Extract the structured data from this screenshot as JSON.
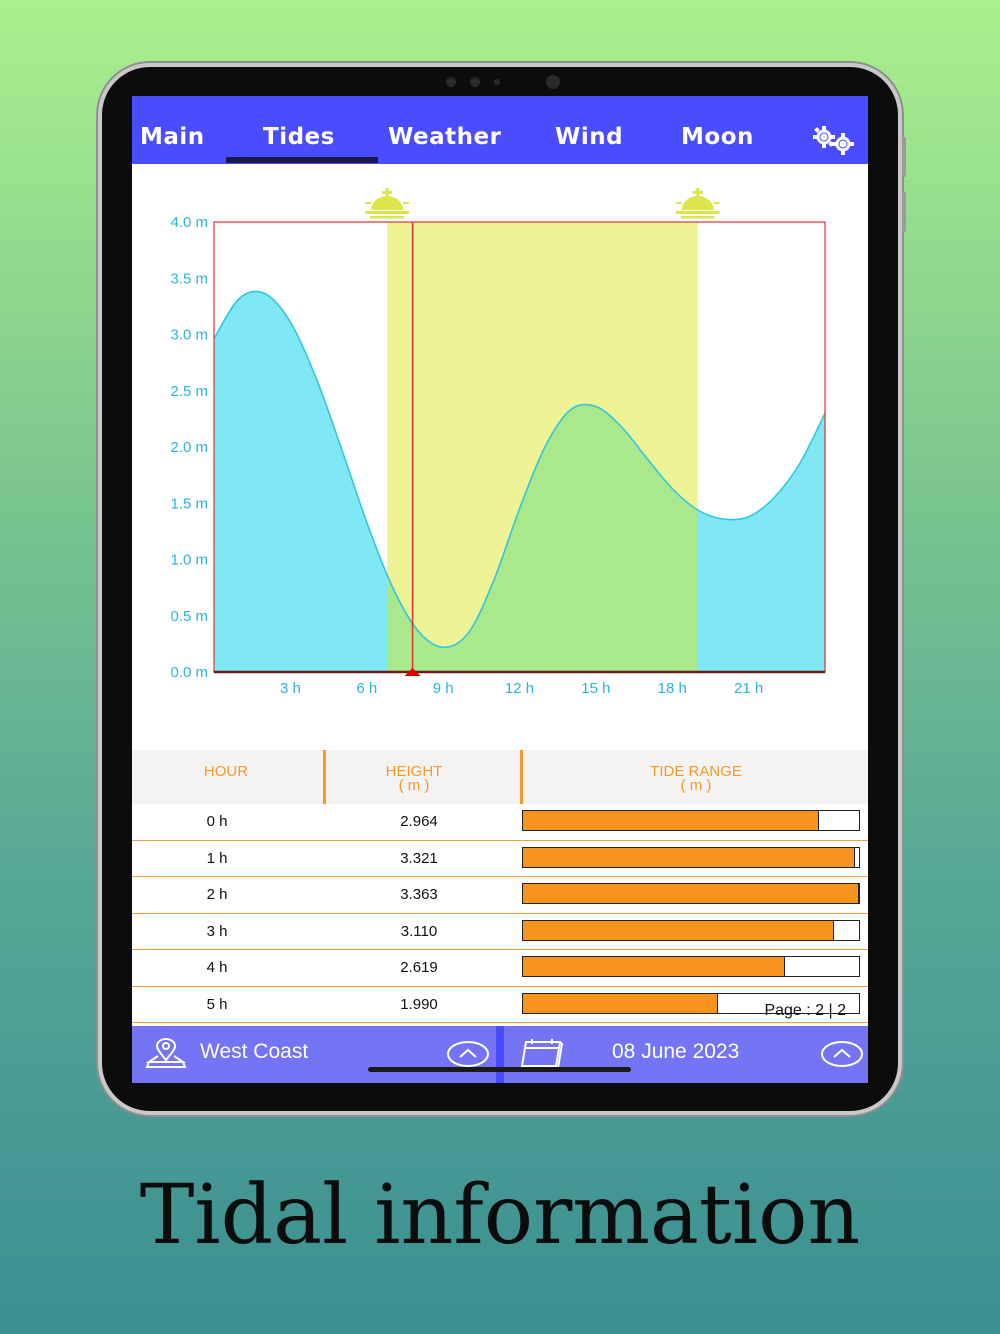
{
  "caption": "Tidal information",
  "nav": {
    "tabs": [
      {
        "label": "Main"
      },
      {
        "label": "Tides"
      },
      {
        "label": "Weather"
      },
      {
        "label": "Wind"
      },
      {
        "label": "Moon"
      }
    ],
    "active_tab": "Tides",
    "settings_icon": "gears-icon"
  },
  "chart_data": {
    "type": "area",
    "y_ticks": [
      "0.0 m",
      "0.5 m",
      "1.0 m",
      "1.5 m",
      "2.0 m",
      "2.5 m",
      "3.0 m",
      "3.5 m",
      "4.0 m"
    ],
    "x_ticks": [
      "3 h",
      "6 h",
      "9 h",
      "12 h",
      "15 h",
      "18 h",
      "21 h"
    ],
    "ylim": [
      0,
      4
    ],
    "xlim": [
      0,
      24
    ],
    "unit": "m",
    "x": [
      0,
      1,
      2,
      3,
      4,
      5,
      6,
      7,
      8,
      9,
      10,
      11,
      12,
      13,
      14,
      15,
      16,
      17,
      18,
      19,
      20,
      21,
      22,
      23,
      24
    ],
    "values": [
      2.964,
      3.321,
      3.363,
      3.11,
      2.619,
      1.99,
      1.33,
      0.76,
      0.37,
      0.22,
      0.35,
      0.82,
      1.45,
      2.0,
      2.33,
      2.36,
      2.18,
      1.9,
      1.63,
      1.44,
      1.36,
      1.38,
      1.55,
      1.85,
      2.3
    ],
    "daylight_start": 6.8,
    "daylight_end": 19.0,
    "current_time": 7.8,
    "sunrise_icon": "sunrise-icon",
    "sunset_icon": "sunset-icon",
    "colors": {
      "tide_fill": "#80e8f5",
      "tide_line": "#2cc8e0",
      "daylight": "#eef396",
      "overlap": "#a9e88b",
      "frame": "#e03030",
      "tick_text": "#28b6d6"
    }
  },
  "table": {
    "headers": {
      "hour": "HOUR",
      "height": "HEIGHT",
      "height_unit": "( m )",
      "range": "TIDE RANGE",
      "range_unit": "( m )"
    },
    "rows": [
      {
        "hour": "0 h",
        "height": "2.964",
        "fill": 0.881
      },
      {
        "hour": "1 h",
        "height": "3.321",
        "fill": 0.987
      },
      {
        "hour": "2 h",
        "height": "3.363",
        "fill": 0.999
      },
      {
        "hour": "3 h",
        "height": "3.110",
        "fill": 0.925
      },
      {
        "hour": "4 h",
        "height": "2.619",
        "fill": 0.779
      },
      {
        "hour": "5 h",
        "height": "1.990",
        "fill": 0.581
      }
    ],
    "pager": "Page :  2 | 2"
  },
  "bottom": {
    "location": "West Coast",
    "date": "08 June 2023",
    "location_icon": "location-pin-icon",
    "calendar_icon": "calendar-icon",
    "expand_icon": "chevron-up-icon"
  }
}
